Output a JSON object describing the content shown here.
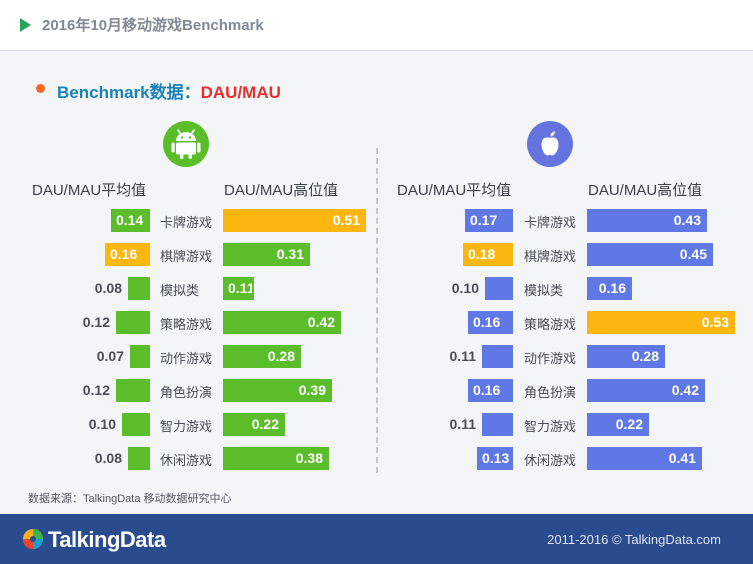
{
  "header": {
    "title": "2016年10月移动游戏Benchmark"
  },
  "section": {
    "title": "Benchmark数据：",
    "highlight": "DAU/MAU"
  },
  "column_headers": {
    "avg": "DAU/MAU平均值",
    "high": "DAU/MAU高位值"
  },
  "colors": {
    "android": "#5bbd2a",
    "ios": "#5f78e6",
    "highlight": "#fcb610"
  },
  "icons": {
    "android": "android-robot-icon",
    "ios": "apple-logo-icon",
    "logo": "talkingdata-logo-icon"
  },
  "footer": {
    "source": "数据来源：TalkingData 移动数据研究中心",
    "logo": "TalkingData",
    "copyright": "2011-2016 © TalkingData.com"
  },
  "chart_data": [
    {
      "type": "bar",
      "platform": "Android",
      "categories": [
        "卡牌游戏",
        "棋牌游戏",
        "模拟类",
        "策略游戏",
        "动作游戏",
        "角色扮演",
        "智力游戏",
        "休闲游戏"
      ],
      "series": [
        {
          "name": "DAU/MAU平均值",
          "values": [
            0.14,
            0.16,
            0.08,
            0.12,
            0.07,
            0.12,
            0.1,
            0.08
          ],
          "labels": [
            "0.14",
            "0.16",
            "0.08",
            "0.12",
            "0.07",
            "0.12",
            "0.10",
            "0.08"
          ],
          "highlight_index": 1
        },
        {
          "name": "DAU/MAU高位值",
          "values": [
            0.51,
            0.31,
            0.11,
            0.42,
            0.28,
            0.39,
            0.22,
            0.38
          ],
          "labels": [
            "0.51",
            "0.31",
            "0.11",
            "0.42",
            "0.28",
            "0.39",
            "0.22",
            "0.38"
          ],
          "highlight_index": 0
        }
      ]
    },
    {
      "type": "bar",
      "platform": "iOS",
      "categories": [
        "卡牌游戏",
        "棋牌游戏",
        "模拟类",
        "策略游戏",
        "动作游戏",
        "角色扮演",
        "智力游戏",
        "休闲游戏"
      ],
      "series": [
        {
          "name": "DAU/MAU平均值",
          "values": [
            0.17,
            0.18,
            0.1,
            0.16,
            0.11,
            0.16,
            0.11,
            0.13
          ],
          "labels": [
            "0.17",
            "0.18",
            "0.10",
            "0.16",
            "0.11",
            "0.16",
            "0.11",
            "0.13"
          ],
          "highlight_index": 1
        },
        {
          "name": "DAU/MAU高位值",
          "values": [
            0.43,
            0.45,
            0.16,
            0.53,
            0.28,
            0.42,
            0.22,
            0.41
          ],
          "labels": [
            "0.43",
            "0.45",
            "0.16",
            "0.53",
            "0.28",
            "0.42",
            "0.22",
            "0.41"
          ],
          "highlight_index": 3
        }
      ]
    }
  ]
}
